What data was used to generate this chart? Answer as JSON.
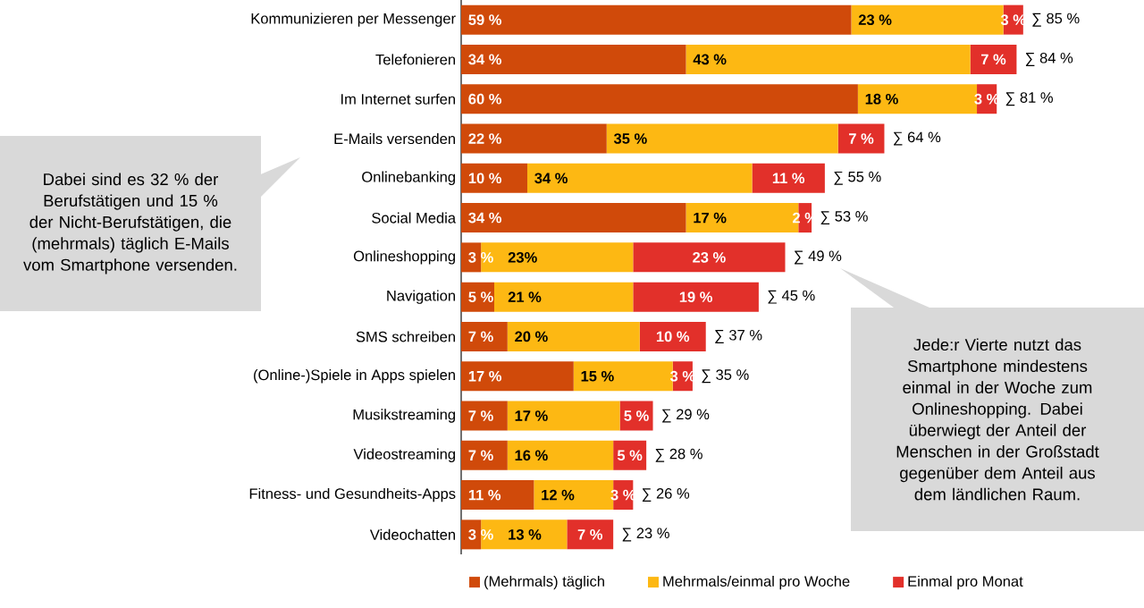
{
  "chart_data": {
    "type": "bar",
    "orientation": "horizontal",
    "stacked": true,
    "categories": [
      "Kommunizieren per Messenger",
      "Telefonieren",
      "Im Internet surfen",
      "E-Mails versenden",
      "Onlinebanking",
      "Social Media",
      "Onlineshopping",
      "Navigation",
      "SMS schreiben",
      "(Online-)Spiele in Apps spielen",
      "Musikstreaming",
      "Videostreaming",
      "Fitness- und Gesundheits-Apps",
      "Videochatten"
    ],
    "series": [
      {
        "name": "(Mehrmals) täglich",
        "color": "#d04a0a",
        "values": [
          59,
          34,
          60,
          22,
          10,
          34,
          3,
          5,
          7,
          17,
          7,
          7,
          11,
          3
        ],
        "value_labels": [
          "59 %",
          "34 %",
          "60 %",
          "22 %",
          "10 %",
          "34 %",
          "3 %",
          "5 %",
          "7 %",
          "17 %",
          "7 %",
          "7 %",
          "11 %",
          "3 %"
        ]
      },
      {
        "name": "Mehrmals/einmal pro Woche",
        "color": "#fdb813",
        "values": [
          23,
          43,
          18,
          35,
          34,
          17,
          23,
          21,
          20,
          15,
          17,
          16,
          12,
          13
        ],
        "value_labels": [
          "23 %",
          "43 %",
          "18 %",
          "35 %",
          "34 %",
          "17 %",
          "23%",
          "21 %",
          "20 %",
          "15 %",
          "17 %",
          "16 %",
          "12 %",
          "13 %"
        ]
      },
      {
        "name": "Einmal pro Monat",
        "color": "#e2302a",
        "values": [
          3,
          7,
          3,
          7,
          11,
          2,
          23,
          19,
          10,
          3,
          5,
          5,
          3,
          7
        ],
        "value_labels": [
          "3 %",
          "7 %",
          "3 %",
          "7 %",
          "11 %",
          "2 %",
          "23 %",
          "19 %",
          "10 %",
          "3 %",
          "5 %",
          "5 %",
          "3 %",
          "7 %"
        ]
      }
    ],
    "totals": [
      "∑ 85 %",
      "∑ 84 %",
      "∑ 81 %",
      "∑ 64 %",
      "∑ 55 %",
      "∑ 53 %",
      "∑ 49 %",
      "∑ 45 %",
      "∑ 37 %",
      "∑ 35 %",
      "∑ 29 %",
      "∑ 28 %",
      "∑ 26 %",
      "∑ 23 %"
    ],
    "legend": "bottom",
    "annotations": [
      "Dabei sind es 32 % der Berufstätigen und 15 % der Nicht-Berufstätigen, die (mehrmals) täglich E-Mails vom Smartphone versenden.",
      "Jede:r Vierte nutzt das Smartphone mindestens einmal in der Woche zum Onlineshopping. Dabei überwiegt der Anteil der Menschen in der Großstadt gegenüber dem Anteil aus dem ländlichen Raum."
    ]
  }
}
